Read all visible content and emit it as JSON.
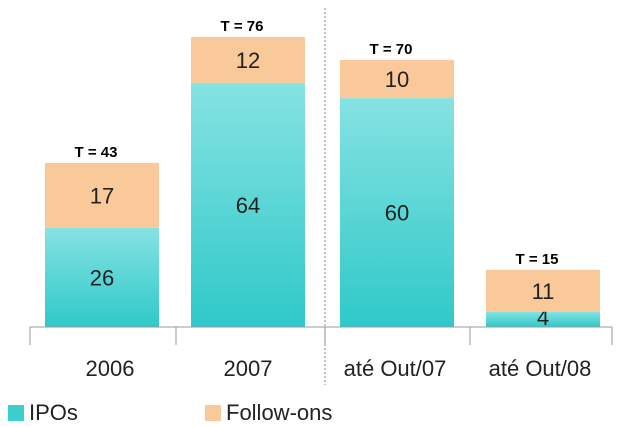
{
  "chart_data": {
    "type": "bar",
    "stacked": true,
    "categories": [
      "2006",
      "2007",
      "até Out/07",
      "até Out/08"
    ],
    "series": [
      {
        "name": "IPOs",
        "values": [
          26,
          64,
          60,
          4
        ],
        "color": "#3CCFCF"
      },
      {
        "name": "Follow-ons",
        "values": [
          17,
          12,
          10,
          11
        ],
        "color": "#FAC999"
      }
    ],
    "totals": [
      "T = 43",
      "T = 76",
      "T = 70",
      "T = 15"
    ],
    "title": "",
    "xlabel": "",
    "ylabel": "",
    "ylim": [
      0,
      76
    ],
    "grid": false,
    "legend": "bottom-left"
  }
}
